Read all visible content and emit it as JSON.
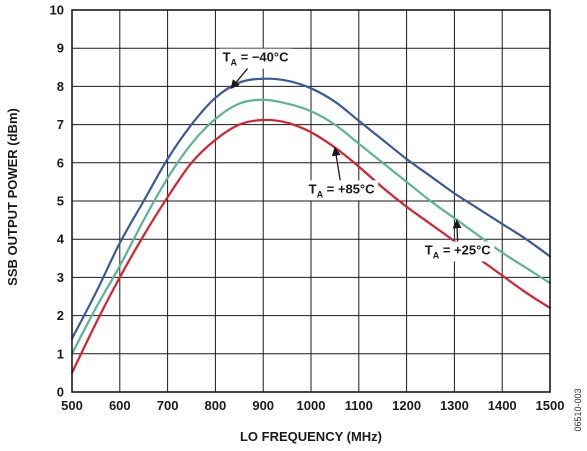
{
  "chart_data": {
    "type": "line",
    "xlabel": "LO FREQUENCY (MHz)",
    "ylabel": "SSB OUTPUT POWER (dBm)",
    "xlim": [
      500,
      1500
    ],
    "ylim": [
      0,
      10
    ],
    "xticks": [
      "500",
      "600",
      "700",
      "800",
      "900",
      "1000",
      "1100",
      "1200",
      "1300",
      "1400",
      "1500"
    ],
    "yticks": [
      "0",
      "1",
      "2",
      "3",
      "4",
      "5",
      "6",
      "7",
      "8",
      "9",
      "10"
    ],
    "grid": true,
    "series": [
      {
        "name": "TA = −40°C",
        "color": "#3a5a9a",
        "x": [
          500,
          550,
          600,
          650,
          700,
          750,
          800,
          850,
          900,
          950,
          1000,
          1050,
          1100,
          1150,
          1200,
          1250,
          1300,
          1350,
          1400,
          1450,
          1500
        ],
        "y": [
          1.4,
          2.6,
          3.9,
          5.0,
          6.1,
          7.0,
          7.7,
          8.1,
          8.2,
          8.15,
          7.95,
          7.6,
          7.1,
          6.6,
          6.1,
          5.65,
          5.2,
          4.8,
          4.4,
          4.0,
          3.55
        ]
      },
      {
        "name": "TA = +25°C",
        "color": "#5cb494",
        "x": [
          500,
          550,
          600,
          650,
          700,
          750,
          800,
          850,
          900,
          950,
          1000,
          1050,
          1100,
          1150,
          1200,
          1250,
          1300,
          1350,
          1400,
          1450,
          1500
        ],
        "y": [
          1.0,
          2.2,
          3.3,
          4.5,
          5.6,
          6.5,
          7.15,
          7.55,
          7.65,
          7.55,
          7.35,
          7.0,
          6.5,
          6.0,
          5.5,
          5.0,
          4.55,
          4.1,
          3.65,
          3.25,
          2.85
        ]
      },
      {
        "name": "TA = +85°C",
        "color": "#d8202e",
        "x": [
          500,
          550,
          600,
          650,
          700,
          750,
          800,
          850,
          900,
          950,
          1000,
          1050,
          1100,
          1150,
          1200,
          1250,
          1300,
          1350,
          1400,
          1450,
          1500
        ],
        "y": [
          0.5,
          1.8,
          3.0,
          4.1,
          5.1,
          6.0,
          6.6,
          7.0,
          7.12,
          7.05,
          6.8,
          6.4,
          5.9,
          5.35,
          4.85,
          4.4,
          3.95,
          3.5,
          3.05,
          2.6,
          2.2
        ]
      }
    ],
    "annotations": [
      {
        "main": "T",
        "sub": "A",
        "rest": " = −40°C",
        "text_x": 815,
        "text_y": 8.65,
        "arrow_to_x": 833,
        "arrow_to_y": 7.95
      },
      {
        "main": "T",
        "sub": "A",
        "rest": " = +85°C",
        "text_x": 995,
        "text_y": 5.2,
        "arrow_to_x": 1050,
        "arrow_to_y": 6.4
      },
      {
        "main": "T",
        "sub": "A",
        "rest": " = +25°C",
        "text_x": 1238,
        "text_y": 3.6,
        "arrow_to_x": 1305,
        "arrow_to_y": 4.5
      }
    ]
  },
  "figure_id": "06510-003"
}
